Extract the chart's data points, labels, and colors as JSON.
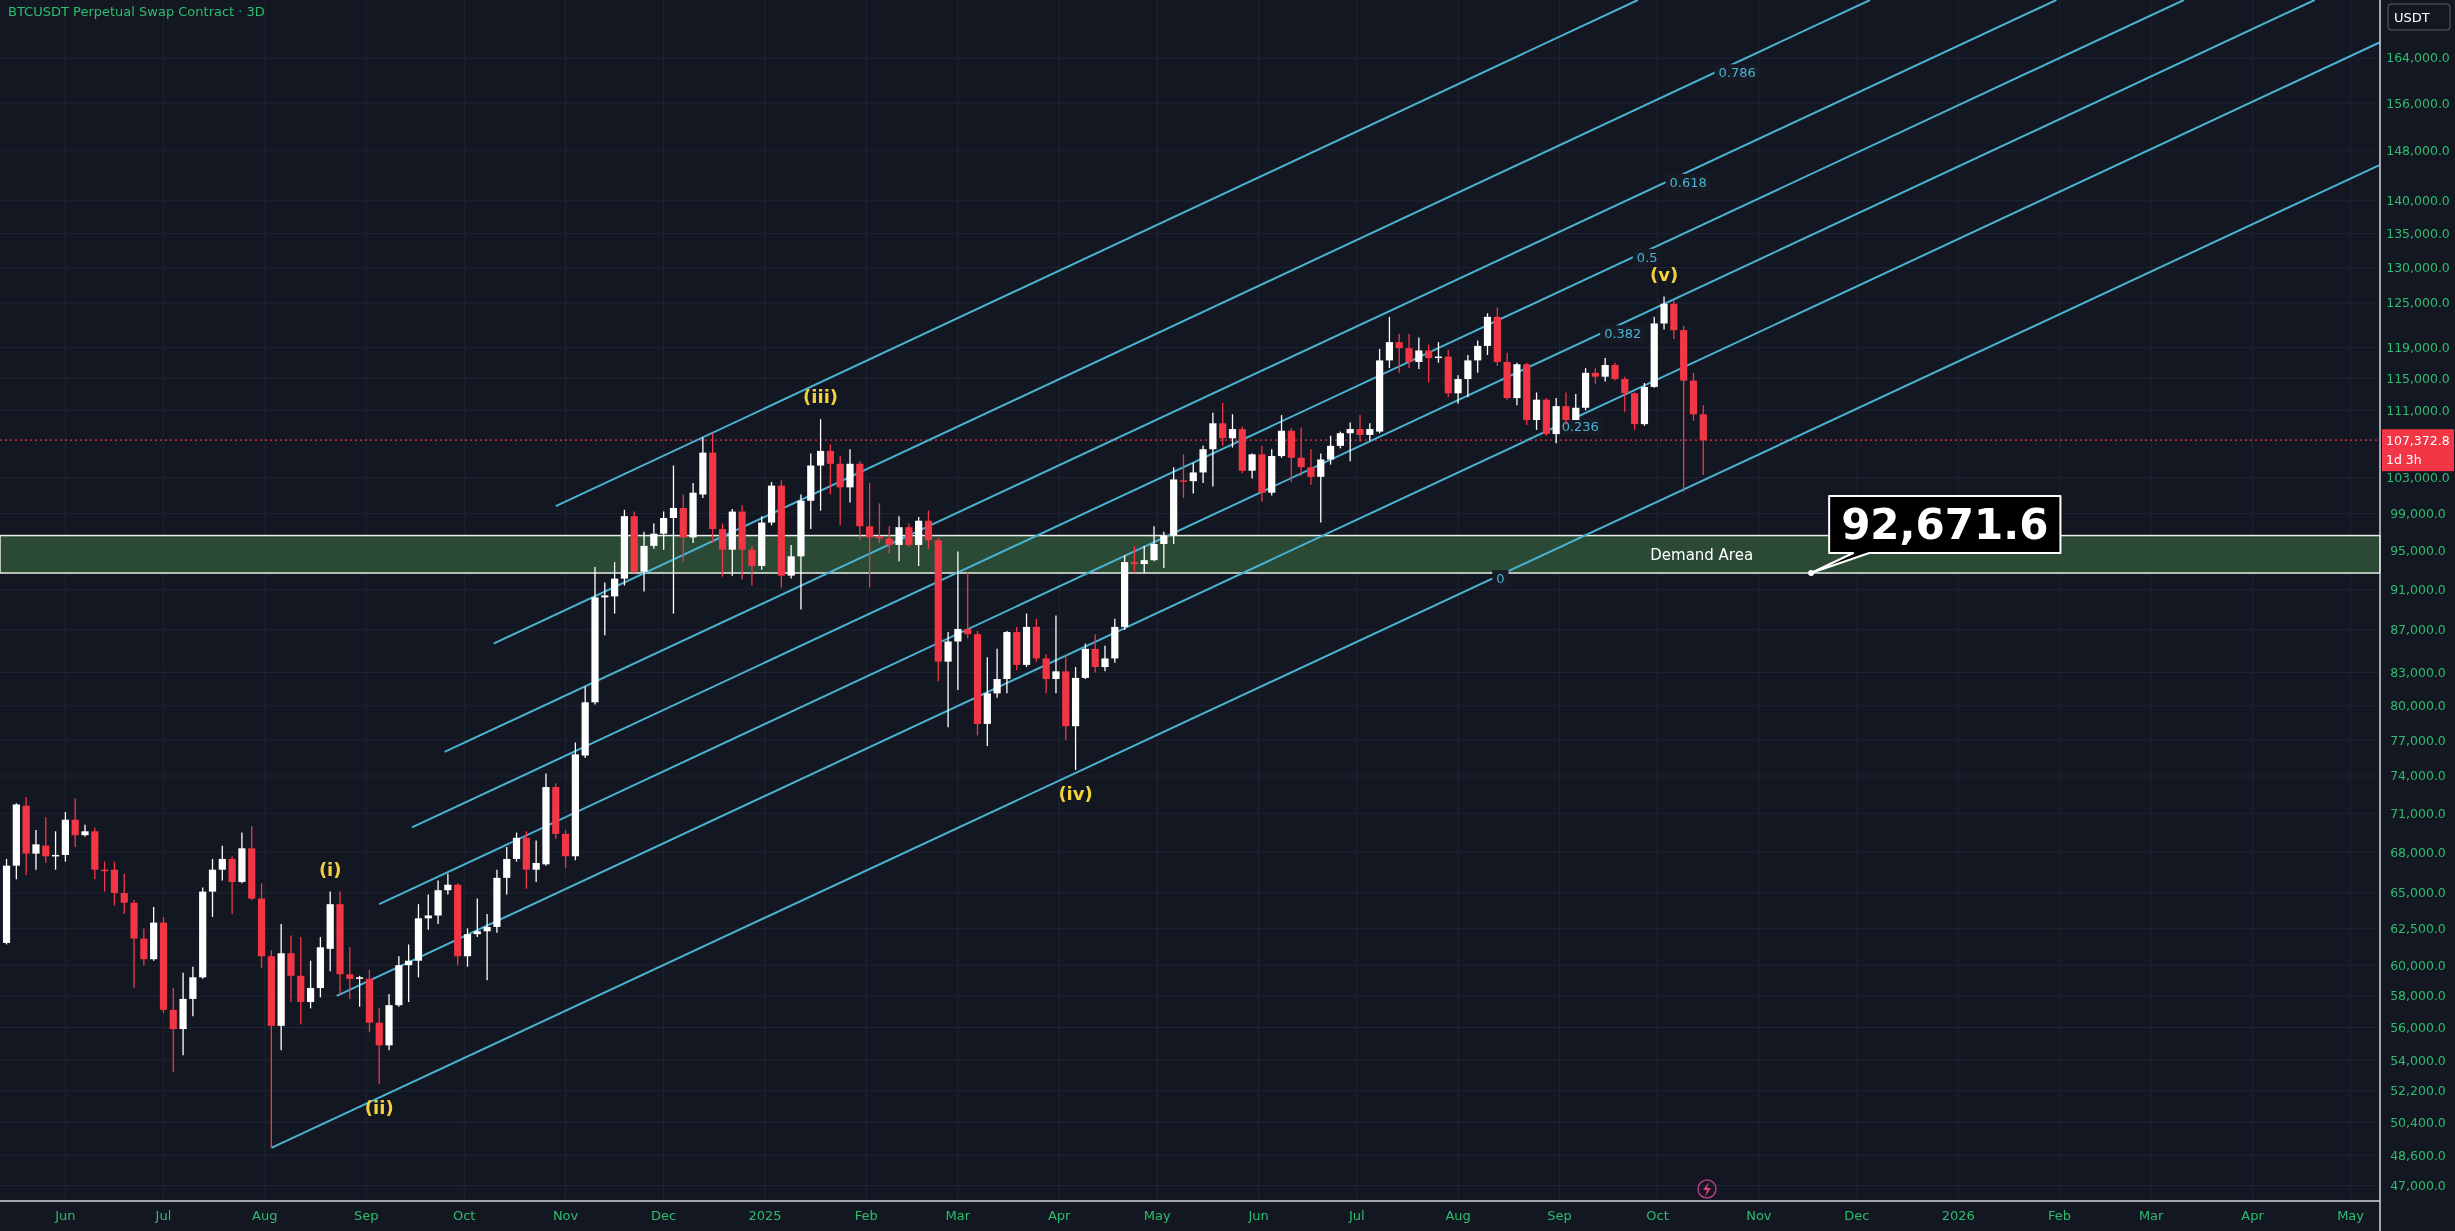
{
  "chart_data": {
    "type": "candlestick",
    "title": "BTCUSDT Perpetual Swap Contract · 3D",
    "ylabel": "USDT",
    "log": true,
    "grid": true,
    "xlim": [
      "2024-05-12",
      "2026-05-10"
    ],
    "ylim": [
      46200,
      174900
    ],
    "xticks": [
      {
        "value": "2024-06-01",
        "label": "Jun"
      },
      {
        "value": "2024-07-01",
        "label": "Jul"
      },
      {
        "value": "2024-08-01",
        "label": "Aug"
      },
      {
        "value": "2024-09-01",
        "label": "Sep"
      },
      {
        "value": "2024-10-01",
        "label": "Oct"
      },
      {
        "value": "2024-11-01",
        "label": "Nov"
      },
      {
        "value": "2024-12-01",
        "label": "Dec"
      },
      {
        "value": "2025-01-01",
        "label": "2025"
      },
      {
        "value": "2025-02-01",
        "label": "Feb"
      },
      {
        "value": "2025-03-01",
        "label": "Mar"
      },
      {
        "value": "2025-04-01",
        "label": "Apr"
      },
      {
        "value": "2025-05-01",
        "label": "May"
      },
      {
        "value": "2025-06-01",
        "label": "Jun"
      },
      {
        "value": "2025-07-01",
        "label": "Jul"
      },
      {
        "value": "2025-08-01",
        "label": "Aug"
      },
      {
        "value": "2025-09-01",
        "label": "Sep"
      },
      {
        "value": "2025-10-01",
        "label": "Oct"
      },
      {
        "value": "2025-11-01",
        "label": "Nov"
      },
      {
        "value": "2025-12-01",
        "label": "Dec"
      },
      {
        "value": "2026-01-01",
        "label": "2026"
      },
      {
        "value": "2026-02-01",
        "label": "Feb"
      },
      {
        "value": "2026-03-01",
        "label": "Mar"
      },
      {
        "value": "2026-04-01",
        "label": "Apr"
      },
      {
        "value": "2026-05-01",
        "label": "May"
      }
    ],
    "yticks": [
      {
        "value": 47000,
        "label": "47,000.0"
      },
      {
        "value": 48600,
        "label": "48,600.0"
      },
      {
        "value": 50400,
        "label": "50,400.0"
      },
      {
        "value": 52200,
        "label": "52,200.0"
      },
      {
        "value": 54000,
        "label": "54,000.0"
      },
      {
        "value": 56000,
        "label": "56,000.0"
      },
      {
        "value": 58000,
        "label": "58,000.0"
      },
      {
        "value": 60000,
        "label": "60,000.0"
      },
      {
        "value": 62500,
        "label": "62,500.0"
      },
      {
        "value": 65000,
        "label": "65,000.0"
      },
      {
        "value": 68000,
        "label": "68,000.0"
      },
      {
        "value": 71000,
        "label": "71,000.0"
      },
      {
        "value": 74000,
        "label": "74,000.0"
      },
      {
        "value": 77000,
        "label": "77,000.0"
      },
      {
        "value": 80000,
        "label": "80,000.0"
      },
      {
        "value": 83000,
        "label": "83,000.0"
      },
      {
        "value": 87000,
        "label": "87,000.0"
      },
      {
        "value": 91000,
        "label": "91,000.0"
      },
      {
        "value": 95000,
        "label": "95,000.0"
      },
      {
        "value": 99000,
        "label": "99,000.0"
      },
      {
        "value": 103000,
        "label": "103,000.0"
      },
      {
        "value": 111000,
        "label": "111,000.0"
      },
      {
        "value": 115000,
        "label": "115,000.0"
      },
      {
        "value": 119000,
        "label": "119,000.0"
      },
      {
        "value": 125000,
        "label": "125,000.0"
      },
      {
        "value": 130000,
        "label": "130,000.0"
      },
      {
        "value": 135000,
        "label": "135,000.0"
      },
      {
        "value": 140000,
        "label": "140,000.0"
      },
      {
        "value": 148000,
        "label": "148,000.0"
      },
      {
        "value": 156000,
        "label": "156,000.0"
      },
      {
        "value": 164000,
        "label": "164,000.0"
      }
    ],
    "bands": [
      {
        "axis": "y",
        "from": 92671.6,
        "to": 96600,
        "label": "Demand Area",
        "color": "#2a4a36"
      }
    ],
    "ref_lines": [
      {
        "axis": "y",
        "value": 107372.8,
        "label": "107,372.8\n1d 3h",
        "color": "#f23645",
        "line_style": "dotted"
      }
    ],
    "annotations": [
      {
        "text": "(i)",
        "x": "2024-08-21",
        "y": 65100
      },
      {
        "text": "(ii)",
        "x": "2024-09-05",
        "y": 52600
      },
      {
        "text": "(iii)",
        "x": "2025-01-18",
        "y": 109900
      },
      {
        "text": "(iv)",
        "x": "2025-04-06",
        "y": 74500
      },
      {
        "text": "(v)",
        "x": "2025-10-03",
        "y": 125900
      },
      {
        "text": "92,671.6",
        "x": "2025-11-17",
        "y": 92671.6
      }
    ],
    "series": [
      {
        "type": "line",
        "name": "0",
        "color": "#4ab3d4",
        "x": [
          "2024-08-03",
          "2026-05-10"
        ],
        "values": [
          49000,
          145700
        ]
      },
      {
        "type": "line",
        "name": "0.236",
        "color": "#4ab3d4",
        "x": [
          "2024-08-23",
          "2026-05-10"
        ],
        "values": [
          58000,
          166900
        ]
      },
      {
        "type": "line",
        "name": "0.382",
        "color": "#4ab3d4",
        "x": [
          "2024-09-05",
          "2026-04-20"
        ],
        "values": [
          64200,
          174900
        ]
      },
      {
        "type": "line",
        "name": "0.5",
        "color": "#4ab3d4",
        "x": [
          "2024-09-15",
          "2026-03-11"
        ],
        "values": [
          69900,
          174900
        ]
      },
      {
        "type": "line",
        "name": "0.618",
        "color": "#4ab3d4",
        "x": [
          "2024-09-25",
          "2026-01-31"
        ],
        "values": [
          76000,
          174900
        ]
      },
      {
        "type": "line",
        "name": "0.786",
        "color": "#4ab3d4",
        "x": [
          "2024-10-10",
          "2025-12-05"
        ],
        "values": [
          85700,
          174900
        ]
      },
      {
        "type": "line",
        "color": "#4ab3d4",
        "x": [
          "2024-10-29",
          "2025-09-25"
        ],
        "values": [
          99800,
          174900
        ]
      },
      {
        "type": "candlestick",
        "x": [
          "2024-05-14",
          "2024-05-17",
          "2024-05-20",
          "2024-05-23",
          "2024-05-26",
          "2024-05-29",
          "2024-06-01",
          "2024-06-04",
          "2024-06-07",
          "2024-06-10",
          "2024-06-13",
          "2024-06-16",
          "2024-06-19",
          "2024-06-22",
          "2024-06-25",
          "2024-06-28",
          "2024-07-01",
          "2024-07-04",
          "2024-07-07",
          "2024-07-10",
          "2024-07-13",
          "2024-07-16",
          "2024-07-19",
          "2024-07-22",
          "2024-07-25",
          "2024-07-28",
          "2024-07-31",
          "2024-08-03",
          "2024-08-06",
          "2024-08-09",
          "2024-08-12",
          "2024-08-15",
          "2024-08-18",
          "2024-08-21",
          "2024-08-24",
          "2024-08-27",
          "2024-08-30",
          "2024-09-02",
          "2024-09-05",
          "2024-09-08",
          "2024-09-11",
          "2024-09-14",
          "2024-09-17",
          "2024-09-20",
          "2024-09-23",
          "2024-09-26",
          "2024-09-29",
          "2024-10-02",
          "2024-10-05",
          "2024-10-08",
          "2024-10-11",
          "2024-10-14",
          "2024-10-17",
          "2024-10-20",
          "2024-10-23",
          "2024-10-26",
          "2024-10-29",
          "2024-11-01",
          "2024-11-04",
          "2024-11-07",
          "2024-11-10",
          "2024-11-13",
          "2024-11-16",
          "2024-11-19",
          "2024-11-22",
          "2024-11-25",
          "2024-11-28",
          "2024-12-01",
          "2024-12-04",
          "2024-12-07",
          "2024-12-10",
          "2024-12-13",
          "2024-12-16",
          "2024-12-19",
          "2024-12-22",
          "2024-12-25",
          "2024-12-28",
          "2024-12-31",
          "2025-01-03",
          "2025-01-06",
          "2025-01-09",
          "2025-01-12",
          "2025-01-15",
          "2025-01-18",
          "2025-01-21",
          "2025-01-24",
          "2025-01-27",
          "2025-01-30",
          "2025-02-02",
          "2025-02-05",
          "2025-02-08",
          "2025-02-11",
          "2025-02-14",
          "2025-02-17",
          "2025-02-20",
          "2025-02-23",
          "2025-02-26",
          "2025-03-01",
          "2025-03-04",
          "2025-03-07",
          "2025-03-10",
          "2025-03-13",
          "2025-03-16",
          "2025-03-19",
          "2025-03-22",
          "2025-03-25",
          "2025-03-28",
          "2025-03-31",
          "2025-04-03",
          "2025-04-06",
          "2025-04-09",
          "2025-04-12",
          "2025-04-15",
          "2025-04-18",
          "2025-04-21",
          "2025-04-24",
          "2025-04-27",
          "2025-04-30",
          "2025-05-03",
          "2025-05-06",
          "2025-05-09",
          "2025-05-12",
          "2025-05-15",
          "2025-05-18",
          "2025-05-21",
          "2025-05-24",
          "2025-05-27",
          "2025-05-30",
          "2025-06-02",
          "2025-06-05",
          "2025-06-08",
          "2025-06-11",
          "2025-06-14",
          "2025-06-17",
          "2025-06-20",
          "2025-06-23",
          "2025-06-26",
          "2025-06-29",
          "2025-07-02",
          "2025-07-05",
          "2025-07-08",
          "2025-07-11",
          "2025-07-14",
          "2025-07-17",
          "2025-07-20",
          "2025-07-23",
          "2025-07-26",
          "2025-07-29",
          "2025-08-01",
          "2025-08-04",
          "2025-08-07",
          "2025-08-10",
          "2025-08-13",
          "2025-08-16",
          "2025-08-19",
          "2025-08-22",
          "2025-08-25",
          "2025-08-28",
          "2025-08-31",
          "2025-09-03",
          "2025-09-06",
          "2025-09-09",
          "2025-09-12",
          "2025-09-15",
          "2025-09-18",
          "2025-09-21",
          "2025-09-24",
          "2025-09-27",
          "2025-09-30",
          "2025-10-03",
          "2025-10-06",
          "2025-10-09",
          "2025-10-12",
          "2025-10-15"
        ],
        "ohlc": [
          [
            61500,
            67500,
            61400,
            67000
          ],
          [
            67000,
            71800,
            66000,
            71700
          ],
          [
            71600,
            72300,
            66300,
            67900
          ],
          [
            67900,
            69700,
            66700,
            68600
          ],
          [
            68500,
            70700,
            67200,
            67700
          ],
          [
            67700,
            69600,
            66700,
            67800
          ],
          [
            67800,
            71100,
            67300,
            70500
          ],
          [
            70500,
            72200,
            68400,
            69300
          ],
          [
            69300,
            70100,
            69200,
            69600
          ],
          [
            69600,
            69900,
            66000,
            66700
          ],
          [
            66700,
            67300,
            65100,
            66600
          ],
          [
            66700,
            67300,
            64100,
            65000
          ],
          [
            65000,
            66400,
            63500,
            64300
          ],
          [
            64300,
            64500,
            58500,
            61800
          ],
          [
            61800,
            62500,
            60000,
            60400
          ],
          [
            60400,
            64000,
            60300,
            62900
          ],
          [
            62900,
            63300,
            56900,
            57100
          ],
          [
            57100,
            58500,
            53300,
            55900
          ],
          [
            55900,
            59500,
            54300,
            57800
          ],
          [
            57800,
            59900,
            56700,
            59200
          ],
          [
            59200,
            65400,
            59100,
            65100
          ],
          [
            65100,
            67500,
            63300,
            66700
          ],
          [
            66700,
            68500,
            65900,
            67500
          ],
          [
            67500,
            67700,
            63500,
            65800
          ],
          [
            65800,
            69500,
            65700,
            68300
          ],
          [
            68300,
            70000,
            64500,
            64600
          ],
          [
            64600,
            65700,
            59800,
            60600
          ],
          [
            60600,
            61000,
            49000,
            56100
          ],
          [
            56100,
            62800,
            54600,
            60800
          ],
          [
            60800,
            62000,
            57600,
            59300
          ],
          [
            59300,
            61900,
            56200,
            57600
          ],
          [
            57600,
            60300,
            57200,
            58500
          ],
          [
            58500,
            61900,
            57900,
            61200
          ],
          [
            61100,
            65100,
            59600,
            64200
          ],
          [
            64200,
            65100,
            58100,
            59400
          ],
          [
            59400,
            61200,
            57800,
            59100
          ],
          [
            59100,
            59300,
            57300,
            59200
          ],
          [
            59100,
            59700,
            55700,
            56300
          ],
          [
            56300,
            57200,
            52600,
            54900
          ],
          [
            54900,
            58100,
            54600,
            57400
          ],
          [
            57400,
            60600,
            57300,
            60000
          ],
          [
            60000,
            61400,
            57600,
            60300
          ],
          [
            60300,
            64200,
            59200,
            63200
          ],
          [
            63200,
            64900,
            62400,
            63400
          ],
          [
            63400,
            65900,
            62800,
            65200
          ],
          [
            65200,
            66400,
            64900,
            65600
          ],
          [
            65600,
            65700,
            60000,
            60600
          ],
          [
            60600,
            62500,
            59900,
            62100
          ],
          [
            62100,
            64600,
            61900,
            62300
          ],
          [
            62300,
            63500,
            59000,
            62600
          ],
          [
            62600,
            66700,
            62200,
            66100
          ],
          [
            66100,
            68400,
            64900,
            67500
          ],
          [
            67500,
            69500,
            67300,
            69100
          ],
          [
            69100,
            69600,
            65300,
            66700
          ],
          [
            66700,
            68900,
            65800,
            67200
          ],
          [
            67100,
            74200,
            67000,
            73100
          ],
          [
            73100,
            73400,
            69000,
            69400
          ],
          [
            69400,
            69700,
            66800,
            67700
          ],
          [
            67700,
            76800,
            67400,
            75800
          ],
          [
            75700,
            81700,
            75500,
            80300
          ],
          [
            80300,
            93300,
            80100,
            90200
          ],
          [
            90200,
            91700,
            86500,
            90400
          ],
          [
            90300,
            93800,
            88600,
            92100
          ],
          [
            92100,
            99400,
            91400,
            98700
          ],
          [
            98700,
            99200,
            92700,
            92800
          ],
          [
            92800,
            97000,
            90800,
            95500
          ],
          [
            95500,
            97900,
            95200,
            96800
          ],
          [
            96800,
            99200,
            95100,
            98500
          ],
          [
            98500,
            104400,
            88600,
            99600
          ],
          [
            99600,
            101100,
            93800,
            96400
          ],
          [
            96400,
            102400,
            95800,
            101300
          ],
          [
            101100,
            107700,
            100700,
            105900
          ],
          [
            105900,
            108200,
            95800,
            97300
          ],
          [
            97300,
            97900,
            92300,
            95100
          ],
          [
            95100,
            99500,
            92400,
            99200
          ],
          [
            99200,
            99900,
            92000,
            95100
          ],
          [
            95100,
            95500,
            91400,
            93400
          ],
          [
            93400,
            98700,
            93000,
            98000
          ],
          [
            98000,
            102500,
            97700,
            102100
          ],
          [
            102100,
            102700,
            91200,
            92400
          ],
          [
            92400,
            95600,
            92100,
            94400
          ],
          [
            94400,
            101100,
            89000,
            100400
          ],
          [
            100400,
            105800,
            97300,
            104400
          ],
          [
            104400,
            109900,
            99300,
            106100
          ],
          [
            106100,
            106900,
            101100,
            104600
          ],
          [
            104600,
            105500,
            97700,
            101900
          ],
          [
            101900,
            106300,
            100200,
            104600
          ],
          [
            104600,
            104900,
            96100,
            97600
          ],
          [
            97600,
            102400,
            91200,
            96400
          ],
          [
            96500,
            100100,
            95800,
            96300
          ],
          [
            96300,
            97600,
            94700,
            95600
          ],
          [
            95600,
            98700,
            93900,
            97500
          ],
          [
            97500,
            97900,
            95400,
            95600
          ],
          [
            95600,
            98600,
            93400,
            98200
          ],
          [
            98200,
            99300,
            95200,
            96100
          ],
          [
            96100,
            96300,
            82200,
            84000
          ],
          [
            84000,
            86800,
            78100,
            85900
          ],
          [
            85900,
            94900,
            81400,
            87100
          ],
          [
            87100,
            92700,
            86200,
            86600
          ],
          [
            86600,
            86900,
            77400,
            78400
          ],
          [
            78400,
            84400,
            76500,
            81100
          ],
          [
            81100,
            85200,
            80700,
            82400
          ],
          [
            82400,
            86900,
            81100,
            86800
          ],
          [
            86800,
            87300,
            83200,
            83700
          ],
          [
            83700,
            88600,
            83500,
            87300
          ],
          [
            87300,
            88100,
            84000,
            84300
          ],
          [
            84300,
            84700,
            81100,
            82400
          ],
          [
            82400,
            88400,
            81100,
            83100
          ],
          [
            83100,
            84600,
            77000,
            78200
          ],
          [
            78200,
            83500,
            74500,
            82500
          ],
          [
            82500,
            85700,
            82400,
            85200
          ],
          [
            85200,
            86600,
            83000,
            83500
          ],
          [
            83500,
            85500,
            83100,
            84300
          ],
          [
            84300,
            88100,
            83900,
            87300
          ],
          [
            87300,
            94500,
            87000,
            93800
          ],
          [
            93800,
            95500,
            92700,
            93600
          ],
          [
            93600,
            95500,
            92700,
            94000
          ],
          [
            94000,
            97600,
            93900,
            95700
          ],
          [
            95700,
            97000,
            93200,
            96600
          ],
          [
            96600,
            104200,
            95700,
            102800
          ],
          [
            102700,
            105700,
            100700,
            102600
          ],
          [
            102600,
            104700,
            101200,
            103600
          ],
          [
            103600,
            106700,
            102400,
            106300
          ],
          [
            106300,
            110700,
            102000,
            109400
          ],
          [
            109400,
            111900,
            106700,
            107600
          ],
          [
            107600,
            110500,
            106500,
            108700
          ],
          [
            108700,
            109000,
            103500,
            103800
          ],
          [
            103800,
            105800,
            102900,
            105700
          ],
          [
            105700,
            106700,
            100300,
            101300
          ],
          [
            101300,
            106300,
            101000,
            105500
          ],
          [
            105500,
            110400,
            105300,
            108500
          ],
          [
            108500,
            108800,
            102500,
            105300
          ],
          [
            105300,
            108900,
            103200,
            104200
          ],
          [
            104200,
            106300,
            102200,
            103100
          ],
          [
            103100,
            105800,
            98000,
            105100
          ],
          [
            105100,
            107900,
            104500,
            106700
          ],
          [
            106700,
            108400,
            106400,
            108200
          ],
          [
            108200,
            109500,
            104900,
            108700
          ],
          [
            108700,
            110400,
            107200,
            108000
          ],
          [
            108000,
            109400,
            107300,
            108700
          ],
          [
            108400,
            118800,
            108200,
            117300
          ],
          [
            117300,
            123100,
            116300,
            119700
          ],
          [
            119700,
            120800,
            115700,
            118900
          ],
          [
            118900,
            120800,
            116300,
            117100
          ],
          [
            117100,
            120300,
            116200,
            118600
          ],
          [
            118600,
            119400,
            114500,
            117600
          ],
          [
            117600,
            119700,
            117000,
            117800
          ],
          [
            117800,
            118700,
            112600,
            113100
          ],
          [
            113100,
            115400,
            111800,
            114900
          ],
          [
            114900,
            118000,
            112600,
            117300
          ],
          [
            117300,
            119900,
            115700,
            119200
          ],
          [
            119200,
            123600,
            118000,
            123100
          ],
          [
            123100,
            124400,
            116600,
            117100
          ],
          [
            117100,
            118300,
            112300,
            112500
          ],
          [
            112500,
            117000,
            111600,
            116800
          ],
          [
            116800,
            117000,
            109200,
            109800
          ],
          [
            109800,
            113200,
            108600,
            112300
          ],
          [
            112300,
            112500,
            107900,
            108100
          ],
          [
            108100,
            112500,
            107000,
            111500
          ],
          [
            111500,
            113200,
            109300,
            109800
          ],
          [
            109800,
            113000,
            109800,
            111300
          ],
          [
            111300,
            116300,
            111000,
            115700
          ],
          [
            115700,
            116300,
            114300,
            115200
          ],
          [
            115200,
            117600,
            114600,
            116700
          ],
          [
            116700,
            117000,
            114700,
            114900
          ],
          [
            114900,
            115200,
            110800,
            113100
          ],
          [
            113100,
            113200,
            108600,
            109300
          ],
          [
            109300,
            114400,
            109100,
            113900
          ],
          [
            113900,
            123100,
            113800,
            122200
          ],
          [
            122200,
            125900,
            121400,
            124900
          ],
          [
            124900,
            125300,
            120100,
            121300
          ],
          [
            121300,
            121900,
            101400,
            114700
          ],
          [
            114700,
            115700,
            109700,
            110500
          ],
          [
            110500,
            111600,
            103300,
            107372.8
          ]
        ],
        "colors": [
          "#ffffff",
          "#ffffff",
          "#f23645",
          "#ffffff",
          "#f23645",
          "#ffffff",
          "#ffffff",
          "#f23645",
          "#ffffff",
          "#f23645",
          "#f23645",
          "#f23645",
          "#f23645",
          "#f23645",
          "#f23645",
          "#ffffff",
          "#f23645",
          "#f23645",
          "#ffffff",
          "#ffffff",
          "#ffffff",
          "#ffffff",
          "#ffffff",
          "#f23645",
          "#ffffff",
          "#f23645",
          "#f23645",
          "#f23645",
          "#ffffff",
          "#f23645",
          "#f23645",
          "#ffffff",
          "#ffffff",
          "#ffffff",
          "#f23645",
          "#f23645",
          "#ffffff",
          "#f23645",
          "#f23645",
          "#ffffff",
          "#ffffff",
          "#ffffff",
          "#ffffff",
          "#ffffff",
          "#ffffff",
          "#ffffff",
          "#f23645",
          "#ffffff",
          "#ffffff",
          "#ffffff",
          "#ffffff",
          "#ffffff",
          "#ffffff",
          "#f23645",
          "#ffffff",
          "#ffffff",
          "#f23645",
          "#f23645",
          "#ffffff",
          "#ffffff",
          "#ffffff",
          "#ffffff",
          "#ffffff",
          "#ffffff",
          "#f23645",
          "#ffffff",
          "#ffffff",
          "#ffffff",
          "#ffffff",
          "#f23645",
          "#ffffff",
          "#ffffff",
          "#f23645",
          "#f23645",
          "#ffffff",
          "#f23645",
          "#f23645",
          "#ffffff",
          "#ffffff",
          "#f23645",
          "#ffffff",
          "#ffffff",
          "#ffffff",
          "#ffffff",
          "#f23645",
          "#f23645",
          "#ffffff",
          "#f23645",
          "#f23645",
          "#f23645",
          "#f23645",
          "#ffffff",
          "#f23645",
          "#ffffff",
          "#f23645",
          "#f23645",
          "#ffffff",
          "#ffffff",
          "#f23645",
          "#f23645",
          "#ffffff",
          "#ffffff",
          "#ffffff",
          "#f23645",
          "#ffffff",
          "#f23645",
          "#f23645",
          "#ffffff",
          "#f23645",
          "#ffffff",
          "#ffffff",
          "#f23645",
          "#ffffff",
          "#ffffff",
          "#ffffff",
          "#f23645",
          "#ffffff",
          "#ffffff",
          "#ffffff",
          "#ffffff",
          "#f23645",
          "#ffffff",
          "#ffffff",
          "#ffffff",
          "#f23645",
          "#ffffff",
          "#f23645",
          "#ffffff",
          "#f23645",
          "#ffffff",
          "#ffffff",
          "#f23645",
          "#f23645",
          "#f23645",
          "#ffffff",
          "#ffffff",
          "#ffffff",
          "#ffffff",
          "#f23645",
          "#ffffff",
          "#ffffff",
          "#ffffff",
          "#f23645",
          "#f23645",
          "#ffffff",
          "#f23645",
          "#ffffff",
          "#f23645",
          "#ffffff",
          "#ffffff",
          "#ffffff",
          "#ffffff",
          "#f23645",
          "#f23645",
          "#ffffff",
          "#f23645",
          "#ffffff",
          "#f23645",
          "#ffffff",
          "#f23645",
          "#ffffff",
          "#ffffff",
          "#f23645",
          "#ffffff",
          "#f23645",
          "#f23645",
          "#f23645",
          "#ffffff",
          "#ffffff",
          "#ffffff",
          "#f23645",
          "#f23645",
          "#f23645",
          "#f23645"
        ]
      }
    ]
  }
}
